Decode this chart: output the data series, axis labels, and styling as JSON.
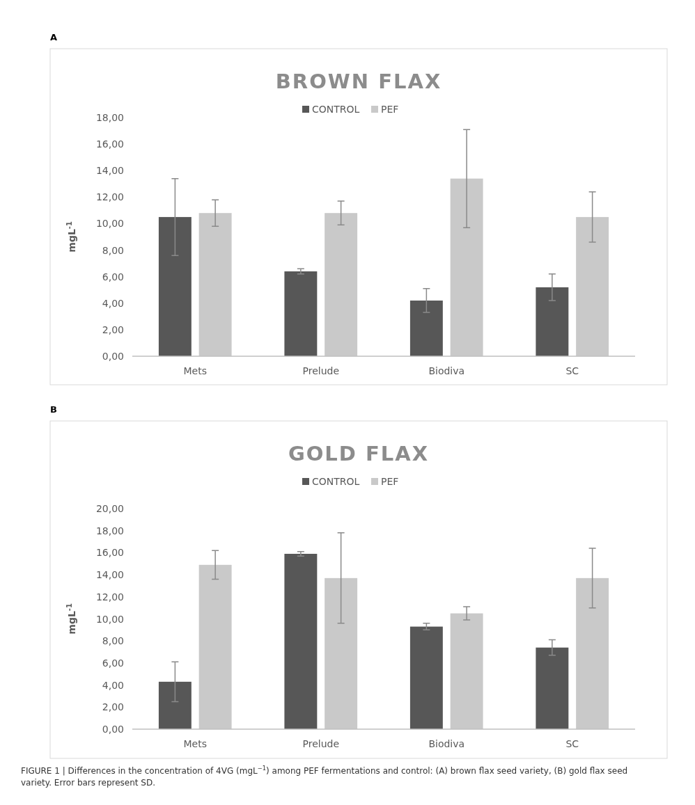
{
  "chart_data": [
    {
      "type": "bar",
      "title": "BROWN FLAX",
      "ylabel": "mgL$^{-1}$",
      "annotations": [
        "A"
      ],
      "categories": [
        "Mets",
        "Prelude",
        "Biodiva",
        "SC"
      ],
      "series": [
        {
          "name": "CONTROL",
          "color": "#575757",
          "values": [
            10.5,
            6.4,
            4.2,
            5.2
          ],
          "errors": [
            2.9,
            0.2,
            0.9,
            1.0
          ]
        },
        {
          "name": "PEF",
          "color": "#c9c9c9",
          "values": [
            10.8,
            10.8,
            13.4,
            10.5
          ],
          "errors": [
            1.0,
            0.9,
            3.7,
            1.9
          ]
        }
      ],
      "ylim": [
        0,
        18
      ],
      "yticks": [
        {
          "value": 0,
          "label": "0,00"
        },
        {
          "value": 2,
          "label": "2,00"
        },
        {
          "value": 4,
          "label": "4,00"
        },
        {
          "value": 6,
          "label": "6,00"
        },
        {
          "value": 8,
          "label": "8,00"
        },
        {
          "value": 10,
          "label": "10,00"
        },
        {
          "value": 12,
          "label": "12,00"
        },
        {
          "value": 14,
          "label": "14,00"
        },
        {
          "value": 16,
          "label": "16,00"
        },
        {
          "value": 18,
          "label": "18,00"
        }
      ],
      "grid": false,
      "legend": "top"
    },
    {
      "type": "bar",
      "title": "GOLD FLAX",
      "ylabel": "mgL$^{-1}$",
      "annotations": [
        "B",
        "FIGURE 1 | Differences in the concentration of 4VG (mgL$^{−1}$) among PEF fermentations and control: (A) brown flax seed variety, (B) gold flax seed variety. Error bars represent SD."
      ],
      "categories": [
        "Mets",
        "Prelude",
        "Biodiva",
        "SC"
      ],
      "series": [
        {
          "name": "CONTROL",
          "color": "#575757",
          "values": [
            4.3,
            15.9,
            9.3,
            7.4
          ],
          "errors": [
            1.8,
            0.2,
            0.3,
            0.7
          ]
        },
        {
          "name": "PEF",
          "color": "#c9c9c9",
          "values": [
            14.9,
            13.7,
            10.5,
            13.7
          ],
          "errors": [
            1.3,
            4.1,
            0.6,
            2.7
          ]
        }
      ],
      "ylim": [
        0,
        20
      ],
      "yticks": [
        {
          "value": 0,
          "label": "0,00"
        },
        {
          "value": 2,
          "label": "2,00"
        },
        {
          "value": 4,
          "label": "4,00"
        },
        {
          "value": 6,
          "label": "6,00"
        },
        {
          "value": 8,
          "label": "8,00"
        },
        {
          "value": 10,
          "label": "10,00"
        },
        {
          "value": 12,
          "label": "12,00"
        },
        {
          "value": 14,
          "label": "14,00"
        },
        {
          "value": 16,
          "label": "16,00"
        },
        {
          "value": 18,
          "label": "18,00"
        },
        {
          "value": 20,
          "label": "20,00"
        }
      ],
      "grid": false,
      "legend": "top"
    }
  ]
}
